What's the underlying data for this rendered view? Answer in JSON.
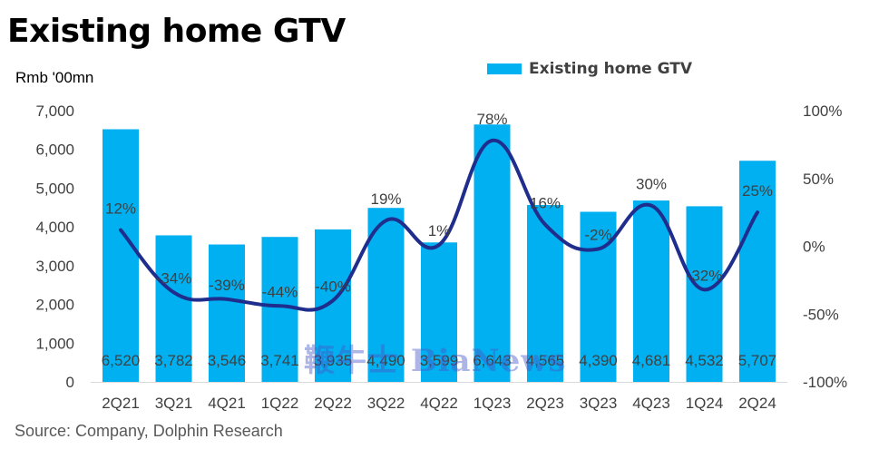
{
  "title": "Existing home GTV",
  "unit_label": "Rmb '00mn",
  "source": "Source: Company, Dolphin Research",
  "watermark": "鞭牛士 BiaNews",
  "colors": {
    "bar": "#00B0F0",
    "line": "#1F2E8C"
  },
  "chart_data": {
    "type": "bar+line",
    "categories": [
      "2Q21",
      "3Q21",
      "4Q21",
      "1Q22",
      "2Q22",
      "3Q22",
      "4Q22",
      "1Q23",
      "2Q23",
      "3Q23",
      "4Q23",
      "1Q24",
      "2Q24"
    ],
    "series": [
      {
        "name": "Existing home GTV",
        "type": "bar",
        "axis": "left",
        "values": [
          6520,
          3782,
          3546,
          3741,
          3935,
          4490,
          3599,
          6643,
          4565,
          4390,
          4681,
          4532,
          5707
        ],
        "labels": [
          "6,520",
          "3,782",
          "3,546",
          "3,741",
          "3,935",
          "4,490",
          "3,599",
          "6,643",
          "4,565",
          "4,390",
          "4,681",
          "4,532",
          "5,707"
        ]
      },
      {
        "type": "line",
        "axis": "right",
        "values": [
          12,
          -34,
          -39,
          -44,
          -40,
          19,
          1,
          78,
          16,
          -2,
          30,
          -32,
          25
        ],
        "labels": [
          "12%",
          "-34%",
          "-39%",
          "-44%",
          "-40%",
          "19%",
          "1%",
          "78%",
          "16%",
          "-2%",
          "30%",
          "-32%",
          "25%"
        ]
      }
    ],
    "left_axis": {
      "min": 0,
      "max": 7000,
      "ticks": [
        "0",
        "1,000",
        "2,000",
        "3,000",
        "4,000",
        "5,000",
        "6,000",
        "7,000"
      ]
    },
    "right_axis": {
      "min": -100,
      "max": 100,
      "ticks": [
        "-100%",
        "-50%",
        "0%",
        "50%",
        "100%"
      ]
    },
    "legend_position": "top-right",
    "grid": false
  }
}
